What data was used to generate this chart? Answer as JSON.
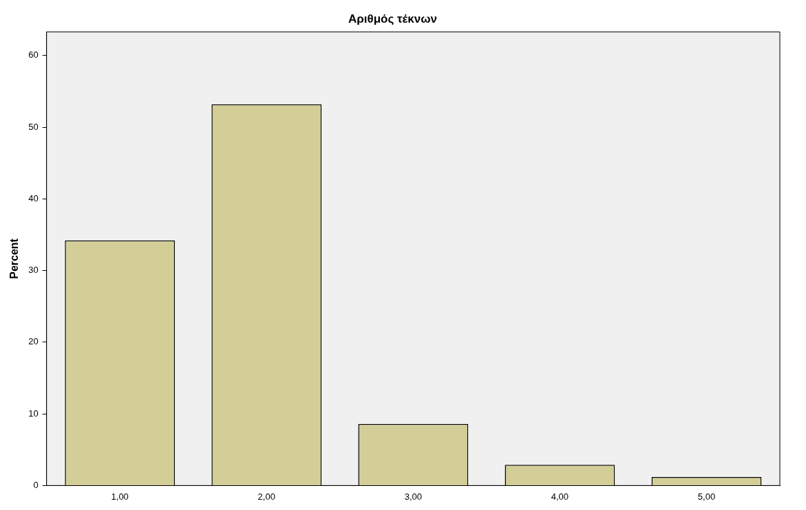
{
  "chart_data": {
    "type": "bar",
    "title": "Αριθμός τέκνων",
    "ylabel": "Percent",
    "categories": [
      "1,00",
      "2,00",
      "3,00",
      "4,00",
      "5,00"
    ],
    "values": [
      34.2,
      53.2,
      8.6,
      2.9,
      1.2
    ],
    "color": "#d3ce97",
    "ylim": [
      0,
      63.3
    ],
    "yticks": [
      0,
      10,
      20,
      30,
      40,
      50,
      60
    ],
    "grid": false,
    "legend": false
  }
}
